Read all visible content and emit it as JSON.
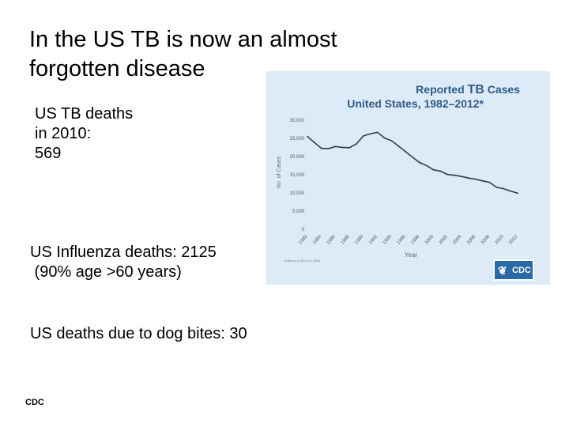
{
  "slide": {
    "title_lines": [
      "In the US TB is now an almost",
      "forgotten disease"
    ],
    "tb_deaths_lines": [
      "US TB deaths",
      "in 2010:",
      "569"
    ],
    "influenza_lines": [
      "US Influenza deaths: 2125",
      " (90% age >60 years)"
    ],
    "dog_bites": "US deaths due to dog bites: 30",
    "source": "CDC"
  },
  "chart_meta": {
    "title_line1_prefix": "Reported ",
    "title_line1_highlight": "TB",
    "title_line1_suffix": " Cases",
    "title_line2": "United States, 1982–2012*",
    "footnote": "*Data as of June 10, 2013",
    "logo_text": "CDC",
    "logo_icon": "hhs-eagle-icon",
    "title_color": "#2f5c86",
    "line_color": "#3b3b3b"
  },
  "chart_data": {
    "type": "line",
    "title": "Reported TB Cases United States, 1982–2012*",
    "xlabel": "Year",
    "ylabel": "No. of Cases",
    "ylim": [
      0,
      30000
    ],
    "yticks": [
      "0",
      "5,000",
      "10,000",
      "15,000",
      "20,000",
      "25,000",
      "30,000"
    ],
    "xticks": [
      "1982",
      "1984",
      "1986",
      "1988",
      "1990",
      "1992",
      "1994",
      "1996",
      "1998",
      "2000",
      "2002",
      "2004",
      "2006",
      "2008",
      "2010",
      "2012"
    ],
    "grid": false,
    "series": [
      {
        "x": [
          1982,
          1983,
          1984,
          1985,
          1986,
          1987,
          1988,
          1989,
          1990,
          1991,
          1992,
          1993,
          1994,
          1995,
          1996,
          1997,
          1998,
          1999,
          2000,
          2001,
          2002,
          2003,
          2004,
          2005,
          2006,
          2007,
          2008,
          2009,
          2010,
          2011,
          2012
        ],
        "y": [
          25520,
          23846,
          22255,
          22201,
          22768,
          22517,
          22436,
          23495,
          25701,
          26283,
          26673,
          25107,
          24361,
          22860,
          21337,
          19851,
          18361,
          17531,
          16377,
          15989,
          15075,
          14874,
          14517,
          14097,
          13779,
          13299,
          12904,
          11545,
          11182,
          10521,
          9945
        ]
      }
    ]
  }
}
